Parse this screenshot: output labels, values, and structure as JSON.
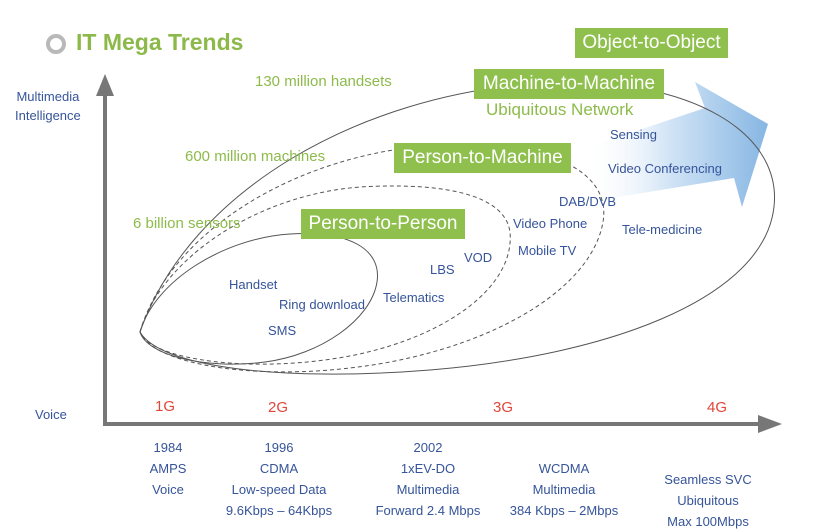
{
  "title": "IT Mega Trends",
  "icons": {
    "title_bullet": "circle-bullet-icon",
    "progress_arrow": "big-right-arrow-icon"
  },
  "colors": {
    "green": "#8fc04e",
    "green_text": "#8dbb4b",
    "blue_text": "#36549a",
    "red_gen": "#e0463a",
    "axis": "#777777"
  },
  "y_axis": {
    "top_label": "Multimedia\nIntelligence",
    "bottom_label": "Voice"
  },
  "scale_labels": [
    "130 million handsets",
    "600 million machines",
    "6 billion sensors"
  ],
  "boxes": {
    "object": "Object-to-Object",
    "machine": "Machine-to-Machine",
    "person_machine": "Person-to-Machine",
    "person_person": "Person-to-Person"
  },
  "ubiquitous": "Ubiquitous Network",
  "services": {
    "handset": "Handset",
    "ring": "Ring download",
    "sms": "SMS",
    "lbs": "LBS",
    "vod": "VOD",
    "telematics": "Telematics",
    "video_phone": "Video Phone",
    "mobile_tv": "Mobile TV",
    "dab": "DAB/DVB",
    "sensing": "Sensing",
    "video_conf": "Video Conferencing",
    "tele_medicine": "Tele-medicine"
  },
  "generations": [
    "1G",
    "2G",
    "3G",
    "4G"
  ],
  "eras": [
    "1984\nAMPS\nVoice",
    "1996\nCDMA\nLow-speed Data\n9.6Kbps – 64Kbps",
    "2002\n1xEV-DO\nMultimedia\nForward 2.4 Mbps",
    "WCDMA\nMultimedia\n384 Kbps – 2Mbps",
    "Seamless SVC Ubiquitous\nMax 100Mbps"
  ]
}
